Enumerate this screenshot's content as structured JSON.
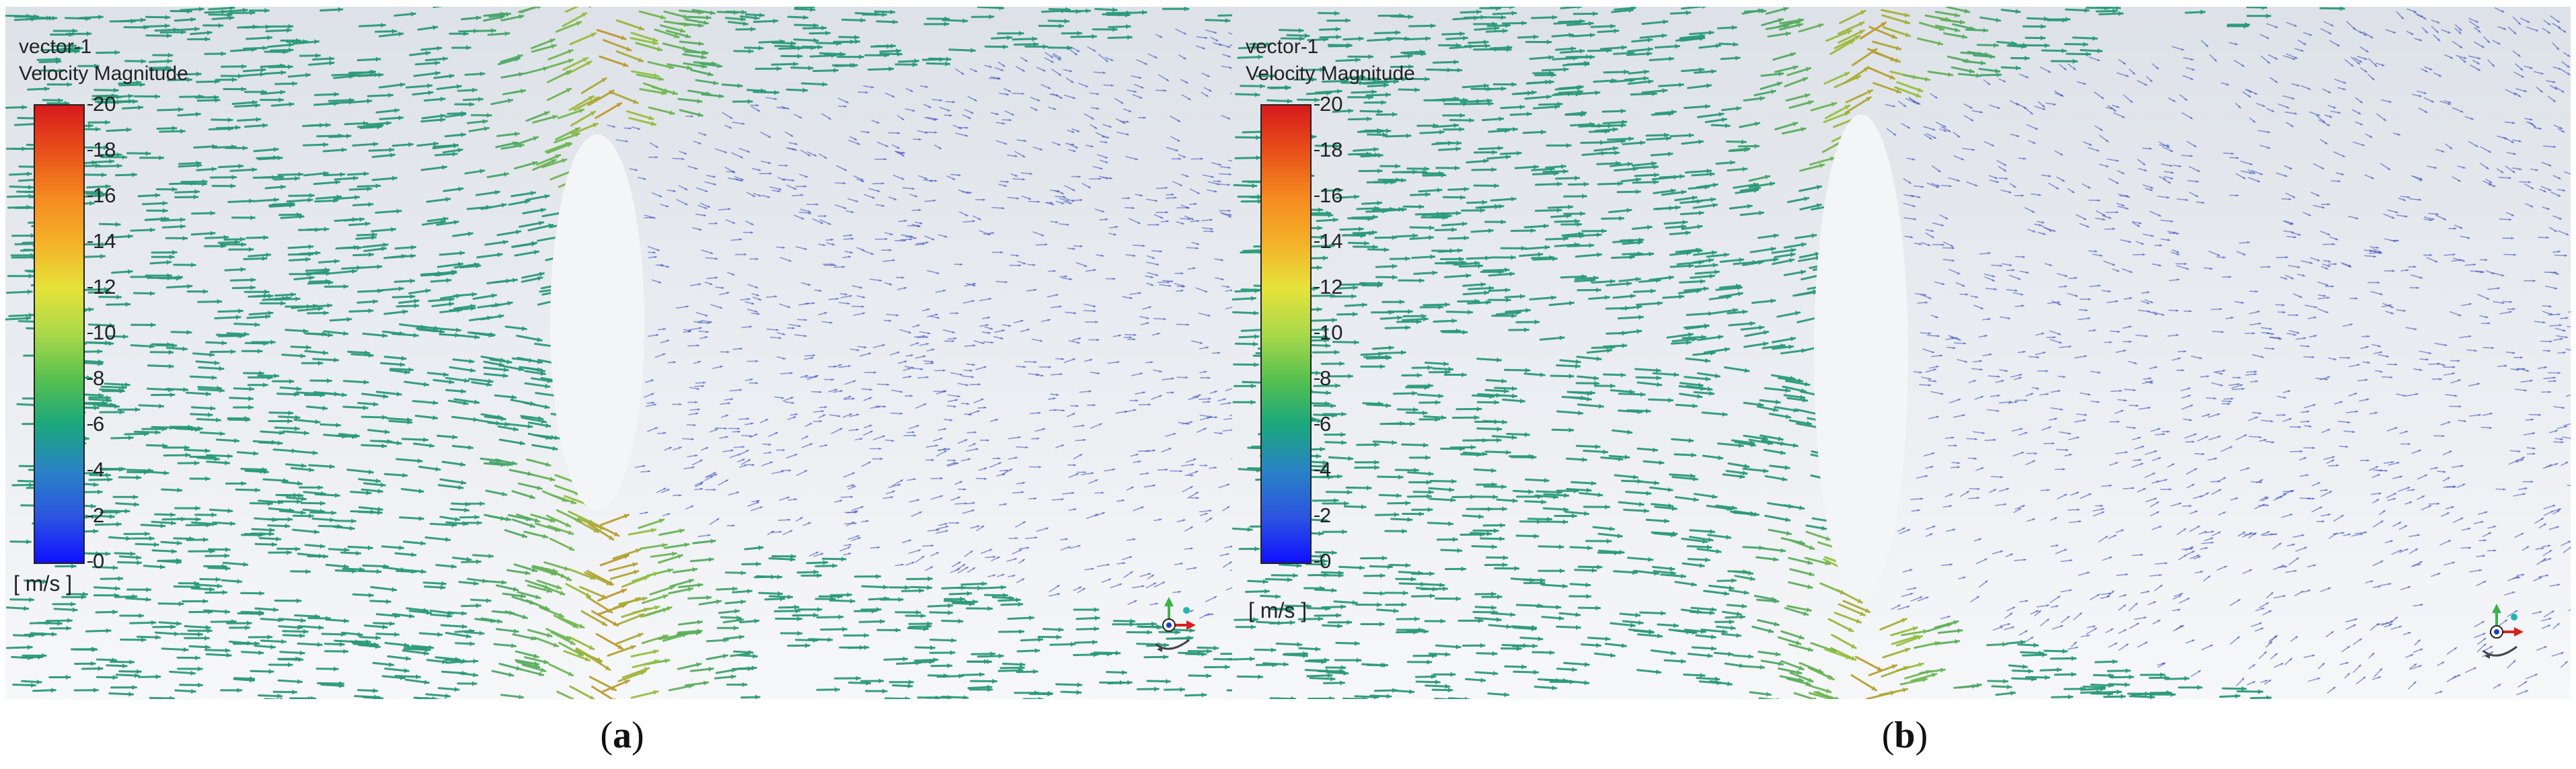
{
  "panels": [
    {
      "id": "a",
      "legend_title_1": "vector-1",
      "legend_title_2": "Velocity Magnitude",
      "ticks": [
        "20",
        "18",
        "16",
        "14",
        "12",
        "10",
        "8",
        "6",
        "4",
        "2",
        "0"
      ],
      "units": "[ m/s ]",
      "caption_open": "(",
      "caption_letter": "a",
      "caption_close": ")"
    },
    {
      "id": "b",
      "legend_title_1": "vector-1",
      "legend_title_2": "Velocity Magnitude",
      "ticks": [
        "20",
        "18",
        "16",
        "14",
        "12",
        "10",
        "8",
        "6",
        "4",
        "2",
        "0"
      ],
      "units": "[ m/s ]",
      "caption_open": "(",
      "caption_letter": "b",
      "caption_close": ")"
    }
  ],
  "colors": {
    "background_top": "#dde2e8",
    "background_bottom": "#f6f7f9",
    "freestream_arrow": "#2a9a78",
    "fast_arrow": "#8fc441",
    "peak_arrow": "#e07a22",
    "wake_arrow": "#3a4fc0",
    "colormap": [
      "#d7191c",
      "#f58a1f",
      "#e6e33a",
      "#56c04f",
      "#1aa77e",
      "#2a82c6",
      "#1010ff"
    ]
  },
  "icons": [
    "coordinate-triad-icon"
  ]
}
